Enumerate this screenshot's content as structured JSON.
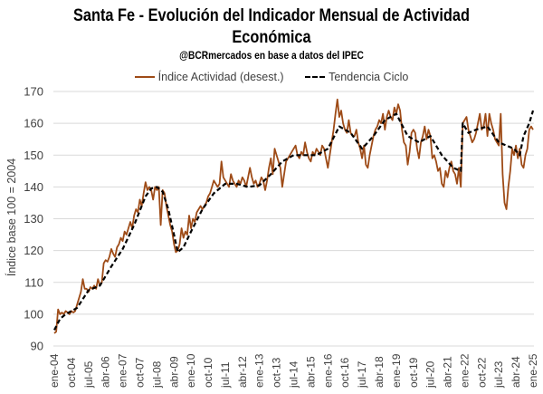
{
  "chart_data": {
    "type": "line",
    "title": "Santa Fe - Evolución del Indicador Mensual de Actividad Económica",
    "title_lines": [
      "Santa Fe - Evolución del Indicador Mensual de Actividad",
      "Económica"
    ],
    "subtitle": "@BCRmercados en base a datos del IPEC",
    "xlabel": "",
    "ylabel": "Índice base 100 = 2004",
    "ylim": [
      90,
      170
    ],
    "yticks": [
      90,
      100,
      110,
      120,
      130,
      140,
      150,
      160,
      170
    ],
    "grid": true,
    "legend_position": "top-center",
    "x_start": "ene-04",
    "x_end": "ene-25",
    "frequency": "monthly",
    "xtick_labels": [
      "ene-04",
      "oct-04",
      "jul-05",
      "abr-06",
      "ene-07",
      "oct-07",
      "jul-08",
      "abr-09",
      "ene-10",
      "oct-10",
      "jul-11",
      "abr-12",
      "ene-13",
      "oct-13",
      "jul-14",
      "abr-15",
      "ene-16",
      "oct-16",
      "jul-17",
      "abr-18",
      "ene-19",
      "oct-19",
      "jul-20",
      "abr-21",
      "ene-22",
      "oct-22",
      "jul-23",
      "abr-24",
      "ene-25"
    ],
    "xtick_step_months": 9,
    "colors": {
      "actividad": "#9E4B17",
      "tendencia": "#000000",
      "grid": "#D9D9D9",
      "tick_text": "#404040"
    },
    "series": [
      {
        "name": "Índice Actividad (desest.)",
        "style": "solid",
        "anchors": [
          [
            0,
            94
          ],
          [
            1,
            94.5
          ],
          [
            2,
            101.5
          ],
          [
            3,
            100
          ],
          [
            4,
            100.5
          ],
          [
            5,
            100
          ],
          [
            6,
            101
          ],
          [
            7,
            100.5
          ],
          [
            8,
            100
          ],
          [
            9,
            101
          ],
          [
            10,
            100.5
          ],
          [
            11,
            101
          ],
          [
            12,
            103
          ],
          [
            13,
            105
          ],
          [
            14,
            107
          ],
          [
            15,
            111
          ],
          [
            16,
            108
          ],
          [
            17,
            108
          ],
          [
            18,
            107
          ],
          [
            19,
            108.5
          ],
          [
            20,
            108
          ],
          [
            21,
            109
          ],
          [
            22,
            108
          ],
          [
            23,
            111
          ],
          [
            24,
            109
          ],
          [
            25,
            110
          ],
          [
            26,
            116
          ],
          [
            27,
            117
          ],
          [
            28,
            116.5
          ],
          [
            29,
            118
          ],
          [
            30,
            120.5
          ],
          [
            31,
            119
          ],
          [
            32,
            118
          ],
          [
            33,
            121
          ],
          [
            34,
            122
          ],
          [
            35,
            124
          ],
          [
            36,
            123
          ],
          [
            37,
            126
          ],
          [
            38,
            125
          ],
          [
            39,
            127
          ],
          [
            40,
            129
          ],
          [
            41,
            127
          ],
          [
            42,
            131
          ],
          [
            43,
            133
          ],
          [
            44,
            132
          ],
          [
            45,
            136
          ],
          [
            46,
            134
          ],
          [
            47,
            138
          ],
          [
            48,
            141.5
          ],
          [
            49,
            139
          ],
          [
            50,
            140
          ],
          [
            51,
            139
          ],
          [
            52,
            136
          ],
          [
            53,
            140
          ],
          [
            54,
            139
          ],
          [
            55,
            140
          ],
          [
            56,
            128
          ],
          [
            57,
            139
          ],
          [
            58,
            138
          ],
          [
            59,
            134
          ],
          [
            60,
            131
          ],
          [
            61,
            128
          ],
          [
            62,
            126
          ],
          [
            63,
            122
          ],
          [
            64,
            119.5
          ],
          [
            65,
            120
          ],
          [
            66,
            122
          ],
          [
            67,
            127
          ],
          [
            68,
            124
          ],
          [
            69,
            126
          ],
          [
            70,
            125
          ],
          [
            71,
            131
          ],
          [
            72,
            127
          ],
          [
            73,
            130
          ],
          [
            74,
            129
          ],
          [
            75,
            132
          ],
          [
            76,
            133
          ],
          [
            77,
            134
          ],
          [
            78,
            133
          ],
          [
            79,
            134
          ],
          [
            80,
            135
          ],
          [
            81,
            137
          ],
          [
            82,
            138
          ],
          [
            83,
            140
          ],
          [
            84,
            142
          ],
          [
            85,
            141
          ],
          [
            86,
            140
          ],
          [
            87,
            141
          ],
          [
            88,
            148
          ],
          [
            89,
            143
          ],
          [
            90,
            142
          ],
          [
            91,
            141
          ],
          [
            92,
            140
          ],
          [
            93,
            144
          ],
          [
            94,
            142
          ],
          [
            95,
            141
          ],
          [
            96,
            140
          ],
          [
            97,
            142
          ],
          [
            98,
            141
          ],
          [
            99,
            143
          ],
          [
            100,
            142
          ],
          [
            101,
            140
          ],
          [
            102,
            143
          ],
          [
            103,
            146
          ],
          [
            104,
            143
          ],
          [
            105,
            141
          ],
          [
            106,
            142
          ],
          [
            107,
            140
          ],
          [
            108,
            141
          ],
          [
            109,
            143
          ],
          [
            110,
            142
          ],
          [
            111,
            139
          ],
          [
            112,
            142
          ],
          [
            113,
            146
          ],
          [
            114,
            149
          ],
          [
            115,
            144
          ],
          [
            116,
            152
          ],
          [
            117,
            150
          ],
          [
            118,
            148
          ],
          [
            119,
            146
          ],
          [
            120,
            140
          ],
          [
            121,
            144
          ],
          [
            122,
            148
          ],
          [
            123,
            149
          ],
          [
            124,
            150
          ],
          [
            125,
            151
          ],
          [
            126,
            152
          ],
          [
            127,
            153
          ],
          [
            128,
            150
          ],
          [
            129,
            149
          ],
          [
            130,
            151
          ],
          [
            131,
            150
          ],
          [
            132,
            154
          ],
          [
            133,
            151
          ],
          [
            134,
            149
          ],
          [
            135,
            148
          ],
          [
            136,
            151
          ],
          [
            137,
            150
          ],
          [
            138,
            152
          ],
          [
            139,
            151
          ],
          [
            140,
            150
          ],
          [
            141,
            153
          ],
          [
            142,
            152
          ],
          [
            143,
            149
          ],
          [
            144,
            146
          ],
          [
            145,
            150
          ],
          [
            146,
            154
          ],
          [
            147,
            158
          ],
          [
            148,
            163
          ],
          [
            149,
            167.5
          ],
          [
            150,
            162
          ],
          [
            151,
            164
          ],
          [
            152,
            160
          ],
          [
            153,
            158
          ],
          [
            154,
            157
          ],
          [
            155,
            161
          ],
          [
            156,
            157
          ],
          [
            157,
            156
          ],
          [
            158,
            156
          ],
          [
            159,
            158
          ],
          [
            160,
            154
          ],
          [
            161,
            152
          ],
          [
            162,
            149
          ],
          [
            163,
            153
          ],
          [
            164,
            147
          ],
          [
            165,
            146
          ],
          [
            166,
            150
          ],
          [
            167,
            153
          ],
          [
            168,
            156
          ],
          [
            169,
            158
          ],
          [
            170,
            159
          ],
          [
            171,
            161
          ],
          [
            172,
            160
          ],
          [
            173,
            163
          ],
          [
            174,
            158
          ],
          [
            175,
            162
          ],
          [
            176,
            164
          ],
          [
            177,
            162
          ],
          [
            178,
            161
          ],
          [
            179,
            165
          ],
          [
            180,
            163
          ],
          [
            181,
            166
          ],
          [
            182,
            164
          ],
          [
            183,
            158
          ],
          [
            184,
            154
          ],
          [
            185,
            153
          ],
          [
            186,
            147
          ],
          [
            187,
            151
          ],
          [
            188,
            157
          ],
          [
            189,
            158
          ],
          [
            190,
            157
          ],
          [
            191,
            152
          ],
          [
            192,
            149
          ],
          [
            193,
            154
          ],
          [
            194,
            156
          ],
          [
            195,
            159
          ],
          [
            196,
            155
          ],
          [
            197,
            158
          ],
          [
            198,
            156
          ],
          [
            199,
            149
          ],
          [
            200,
            150
          ],
          [
            201,
            148
          ],
          [
            202,
            145
          ],
          [
            203,
            146
          ],
          [
            204,
            141
          ],
          [
            205,
            140
          ],
          [
            206,
            145
          ],
          [
            207,
            143
          ],
          [
            208,
            146
          ],
          [
            209,
            148
          ],
          [
            210,
            145
          ],
          [
            211,
            144
          ],
          [
            212,
            141
          ],
          [
            213,
            146
          ],
          [
            214,
            140
          ],
          [
            215,
            160
          ],
          [
            216,
            161
          ],
          [
            217,
            162
          ],
          [
            218,
            158
          ],
          [
            219,
            156
          ],
          [
            220,
            154
          ],
          [
            221,
            155
          ],
          [
            222,
            157
          ],
          [
            223,
            160
          ],
          [
            224,
            163
          ],
          [
            225,
            158
          ],
          [
            226,
            159
          ],
          [
            227,
            163
          ],
          [
            228,
            156
          ],
          [
            229,
            163
          ],
          [
            230,
            160
          ],
          [
            231,
            158
          ],
          [
            232,
            155
          ],
          [
            233,
            154
          ],
          [
            234,
            153
          ],
          [
            235,
            163
          ],
          [
            236,
            144
          ],
          [
            237,
            135
          ],
          [
            238,
            133
          ],
          [
            239,
            140
          ],
          [
            240,
            145
          ],
          [
            241,
            152
          ],
          [
            242,
            150
          ],
          [
            243,
            153
          ],
          [
            244,
            149
          ],
          [
            245,
            152
          ],
          [
            246,
            147
          ],
          [
            247,
            146
          ],
          [
            248,
            150
          ],
          [
            249,
            152
          ],
          [
            250,
            158
          ],
          [
            251,
            159
          ],
          [
            252,
            158
          ]
        ]
      },
      {
        "name": "Tendencia Ciclo",
        "style": "dashed",
        "anchors": [
          [
            0,
            95
          ],
          [
            3,
            98.5
          ],
          [
            6,
            100
          ],
          [
            12,
            102
          ],
          [
            18,
            107.5
          ],
          [
            24,
            109
          ],
          [
            30,
            115
          ],
          [
            36,
            120.5
          ],
          [
            42,
            128
          ],
          [
            48,
            137
          ],
          [
            51,
            139.5
          ],
          [
            54,
            140
          ],
          [
            57,
            138.5
          ],
          [
            60,
            133
          ],
          [
            63,
            125
          ],
          [
            65,
            119.5
          ],
          [
            68,
            121
          ],
          [
            72,
            126
          ],
          [
            78,
            133
          ],
          [
            84,
            138
          ],
          [
            90,
            141
          ],
          [
            96,
            141
          ],
          [
            102,
            140
          ],
          [
            108,
            140.5
          ],
          [
            114,
            144
          ],
          [
            120,
            148
          ],
          [
            126,
            150
          ],
          [
            132,
            150
          ],
          [
            138,
            150
          ],
          [
            144,
            152
          ],
          [
            150,
            159
          ],
          [
            156,
            157
          ],
          [
            162,
            152
          ],
          [
            168,
            156
          ],
          [
            174,
            161
          ],
          [
            180,
            163
          ],
          [
            186,
            156
          ],
          [
            192,
            154
          ],
          [
            198,
            156
          ],
          [
            204,
            150
          ],
          [
            210,
            146
          ],
          [
            214,
            145
          ],
          [
            215,
            160
          ],
          [
            218,
            157
          ],
          [
            222,
            158
          ],
          [
            228,
            159
          ],
          [
            234,
            154
          ],
          [
            238,
            153
          ],
          [
            242,
            152
          ],
          [
            245,
            150
          ],
          [
            247,
            156
          ],
          [
            250,
            160
          ],
          [
            252,
            164
          ]
        ]
      }
    ]
  },
  "legend": {
    "items": [
      {
        "label": "Índice Actividad (desest.)"
      },
      {
        "label": "Tendencia Ciclo"
      }
    ]
  }
}
